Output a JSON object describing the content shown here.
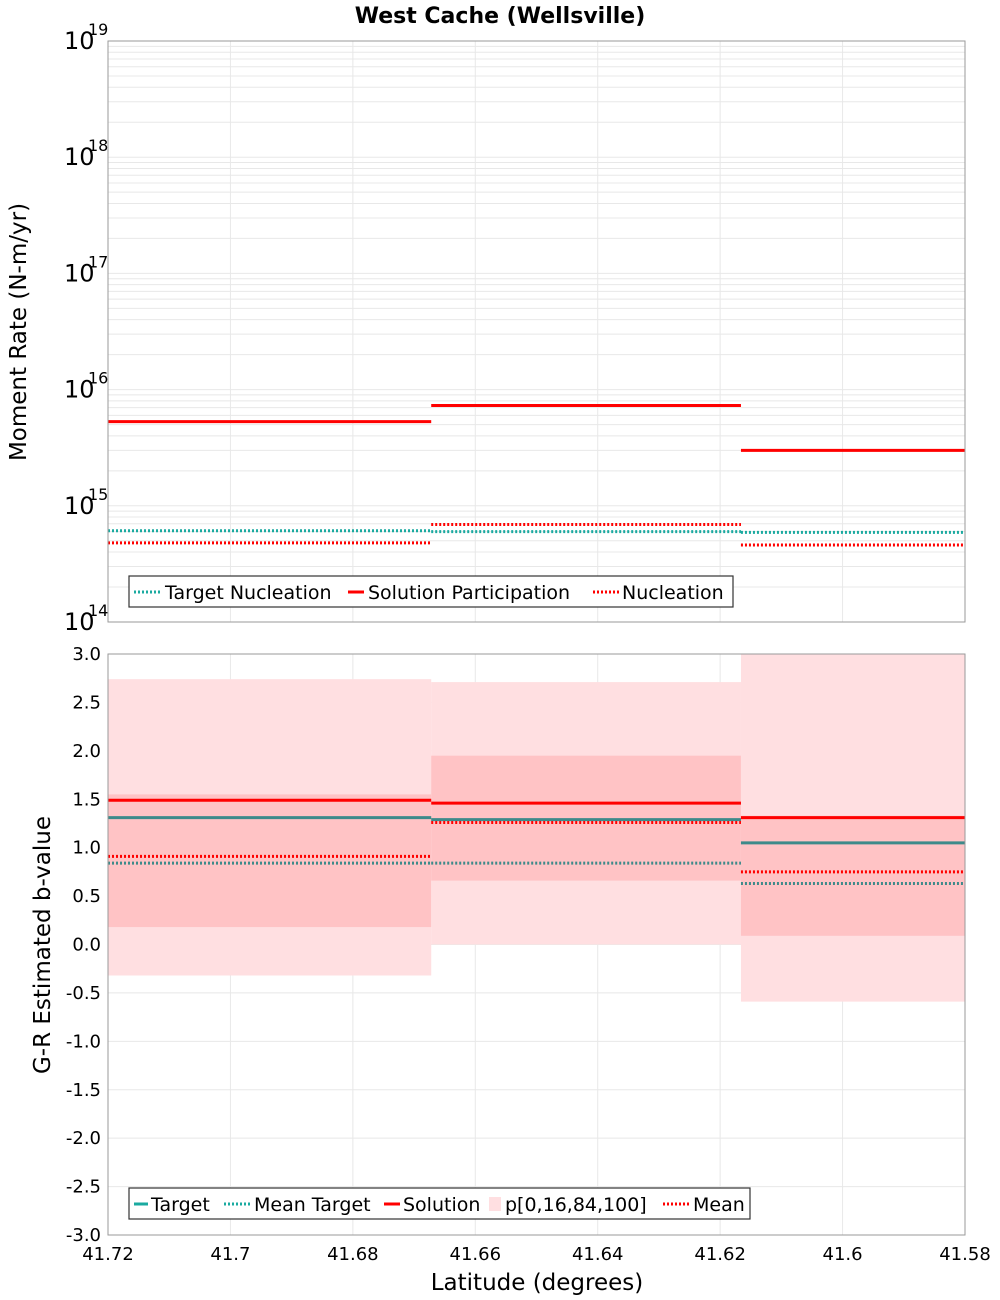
{
  "colors": {
    "target": "#1aaaa0",
    "target_mean_dots": "#1aaaa0",
    "solution": "#ff0000",
    "mean": "#ff0000",
    "band_outer": "#ffdfe1",
    "band_inner": "#ffc3c5",
    "overlap_line": "#3e8a8a",
    "grid": "#e8e8e8"
  },
  "chart_data": [
    {
      "type": "line",
      "title": "West Cache (Wellsville)",
      "ylabel": "Moment Rate (N-m/yr)",
      "xlabel": "",
      "yscale": "log",
      "xlim": [
        41.72,
        41.58
      ],
      "ylim": [
        100000000000000.0,
        1e+19
      ],
      "y_ticks": [
        {
          "value": 100000000000000.0,
          "base": "10",
          "exp": "14"
        },
        {
          "value": 1000000000000000.0,
          "base": "10",
          "exp": "15"
        },
        {
          "value": 1e+16,
          "base": "10",
          "exp": "16"
        },
        {
          "value": 1e+17,
          "base": "10",
          "exp": "17"
        },
        {
          "value": 1e+18,
          "base": "10",
          "exp": "18"
        },
        {
          "value": 1e+19,
          "base": "10",
          "exp": "19"
        }
      ],
      "grid": true,
      "legend": {
        "placement": "bottom-left",
        "entries": [
          "Target Nucleation",
          "Solution Participation",
          "Nucleation"
        ]
      },
      "segments_x": [
        [
          41.72,
          41.6672
        ],
        [
          41.6672,
          41.6166
        ],
        [
          41.6166,
          41.58
        ]
      ],
      "series": [
        {
          "name": "Target Nucleation",
          "style": "dotted",
          "color_key": "target",
          "values": [
            610000000000000.0,
            600000000000000.0,
            590000000000000.0
          ]
        },
        {
          "name": "Solution Participation",
          "style": "solid",
          "color_key": "solution",
          "values": [
            5300000000000000.0,
            7300000000000000.0,
            3000000000000000.0
          ]
        },
        {
          "name": "Nucleation",
          "style": "dotted",
          "color_key": "mean",
          "values": [
            480000000000000.0,
            690000000000000.0,
            460000000000000.0
          ]
        }
      ]
    },
    {
      "type": "line",
      "title": "",
      "ylabel": "G-R Estimated b-value",
      "xlabel": "Latitude (degrees)",
      "xlim": [
        41.72,
        41.58
      ],
      "ylim": [
        -3.0,
        3.0
      ],
      "y_ticks": [
        "3.0",
        "2.5",
        "2.0",
        "1.5",
        "1.0",
        "0.5",
        "0.0",
        "-0.5",
        "-1.0",
        "-1.5",
        "-2.0",
        "-2.5",
        "-3.0"
      ],
      "x_ticks": [
        "41.72",
        "41.7",
        "41.68",
        "41.66",
        "41.64",
        "41.62",
        "41.6",
        "41.58"
      ],
      "grid": true,
      "legend": {
        "placement": "bottom-left",
        "entries": [
          "Target",
          "Mean Target",
          "Solution",
          "p[0,16,84,100]",
          "Mean"
        ]
      },
      "segments_x": [
        [
          41.72,
          41.6672
        ],
        [
          41.6672,
          41.6166
        ],
        [
          41.6166,
          41.58
        ]
      ],
      "bands": {
        "p0": [
          -0.32,
          0.0,
          -0.59
        ],
        "p16": [
          0.18,
          0.66,
          0.09
        ],
        "p84": [
          1.55,
          1.95,
          1.33
        ],
        "p100": [
          2.74,
          2.71,
          3.0
        ]
      },
      "series": [
        {
          "name": "Target",
          "style": "solid",
          "values": [
            1.31,
            1.29,
            1.05
          ]
        },
        {
          "name": "Mean Target",
          "style": "dotted",
          "values": [
            0.84,
            0.84,
            0.63
          ]
        },
        {
          "name": "Solution",
          "style": "solid",
          "values": [
            1.49,
            1.46,
            1.31
          ]
        },
        {
          "name": "Mean",
          "style": "dotted",
          "values": [
            0.91,
            1.26,
            0.75
          ]
        }
      ]
    }
  ]
}
